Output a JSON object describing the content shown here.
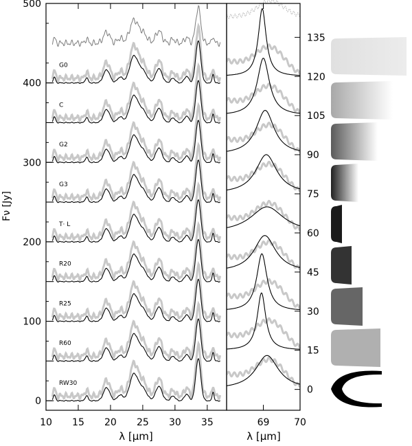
{
  "chart_data": {
    "type": "line",
    "ylabel": "Fν [Jy]",
    "left_panel": {
      "xlabel": "λ [μm]",
      "xlim": [
        10,
        38
      ],
      "ylim": [
        -12,
        500
      ],
      "xticks": [
        10,
        15,
        20,
        25,
        30,
        35
      ],
      "yticks": [
        0,
        100,
        200,
        300,
        400,
        500
      ],
      "observed_offset": 450,
      "peaks_um": [
        11.3,
        16.3,
        19.4,
        23.6,
        27.5,
        33.6,
        35.9
      ],
      "models": [
        {
          "label": "RW30",
          "offset": 0
        },
        {
          "label": "R60",
          "offset": 50
        },
        {
          "label": "R25",
          "offset": 100
        },
        {
          "label": "R20",
          "offset": 150
        },
        {
          "label": "T· L",
          "offset": 200
        },
        {
          "label": "G3",
          "offset": 250
        },
        {
          "label": "G2",
          "offset": 300
        },
        {
          "label": "C",
          "offset": 350
        },
        {
          "label": "G0",
          "offset": 400
        }
      ]
    },
    "right_panel": {
      "xlabel": "λ [μm]",
      "xlim": [
        68,
        70
      ],
      "xticks": [
        69,
        70
      ],
      "ylim": [
        -8,
        148
      ],
      "yticks": [
        0,
        15,
        30,
        45,
        60,
        75,
        90,
        105,
        120,
        135
      ],
      "observed_offset": 135,
      "model_offsets": [
        0,
        15,
        30,
        45,
        60,
        75,
        90,
        105,
        120
      ],
      "peak_centers_um": [
        69.1,
        68.95,
        68.96,
        69.04,
        69.1,
        69.08,
        69.05,
        69.0,
        68.97
      ],
      "peak_widths_um": [
        0.38,
        0.14,
        0.17,
        0.36,
        0.55,
        0.35,
        0.3,
        0.2,
        0.13
      ],
      "peak_heights": [
        13,
        22,
        22,
        14,
        10,
        15,
        17,
        22,
        26
      ]
    },
    "shape_icons": [
      "shape-1",
      "shape-2",
      "shape-3",
      "shape-4",
      "shape-5",
      "shape-6",
      "shape-7",
      "shape-8",
      "shape-9",
      "shape-10"
    ],
    "colors": {
      "model": "#000000",
      "observed_overlay": "#c8c8c8",
      "observed_top": "#7a7a7a"
    }
  }
}
